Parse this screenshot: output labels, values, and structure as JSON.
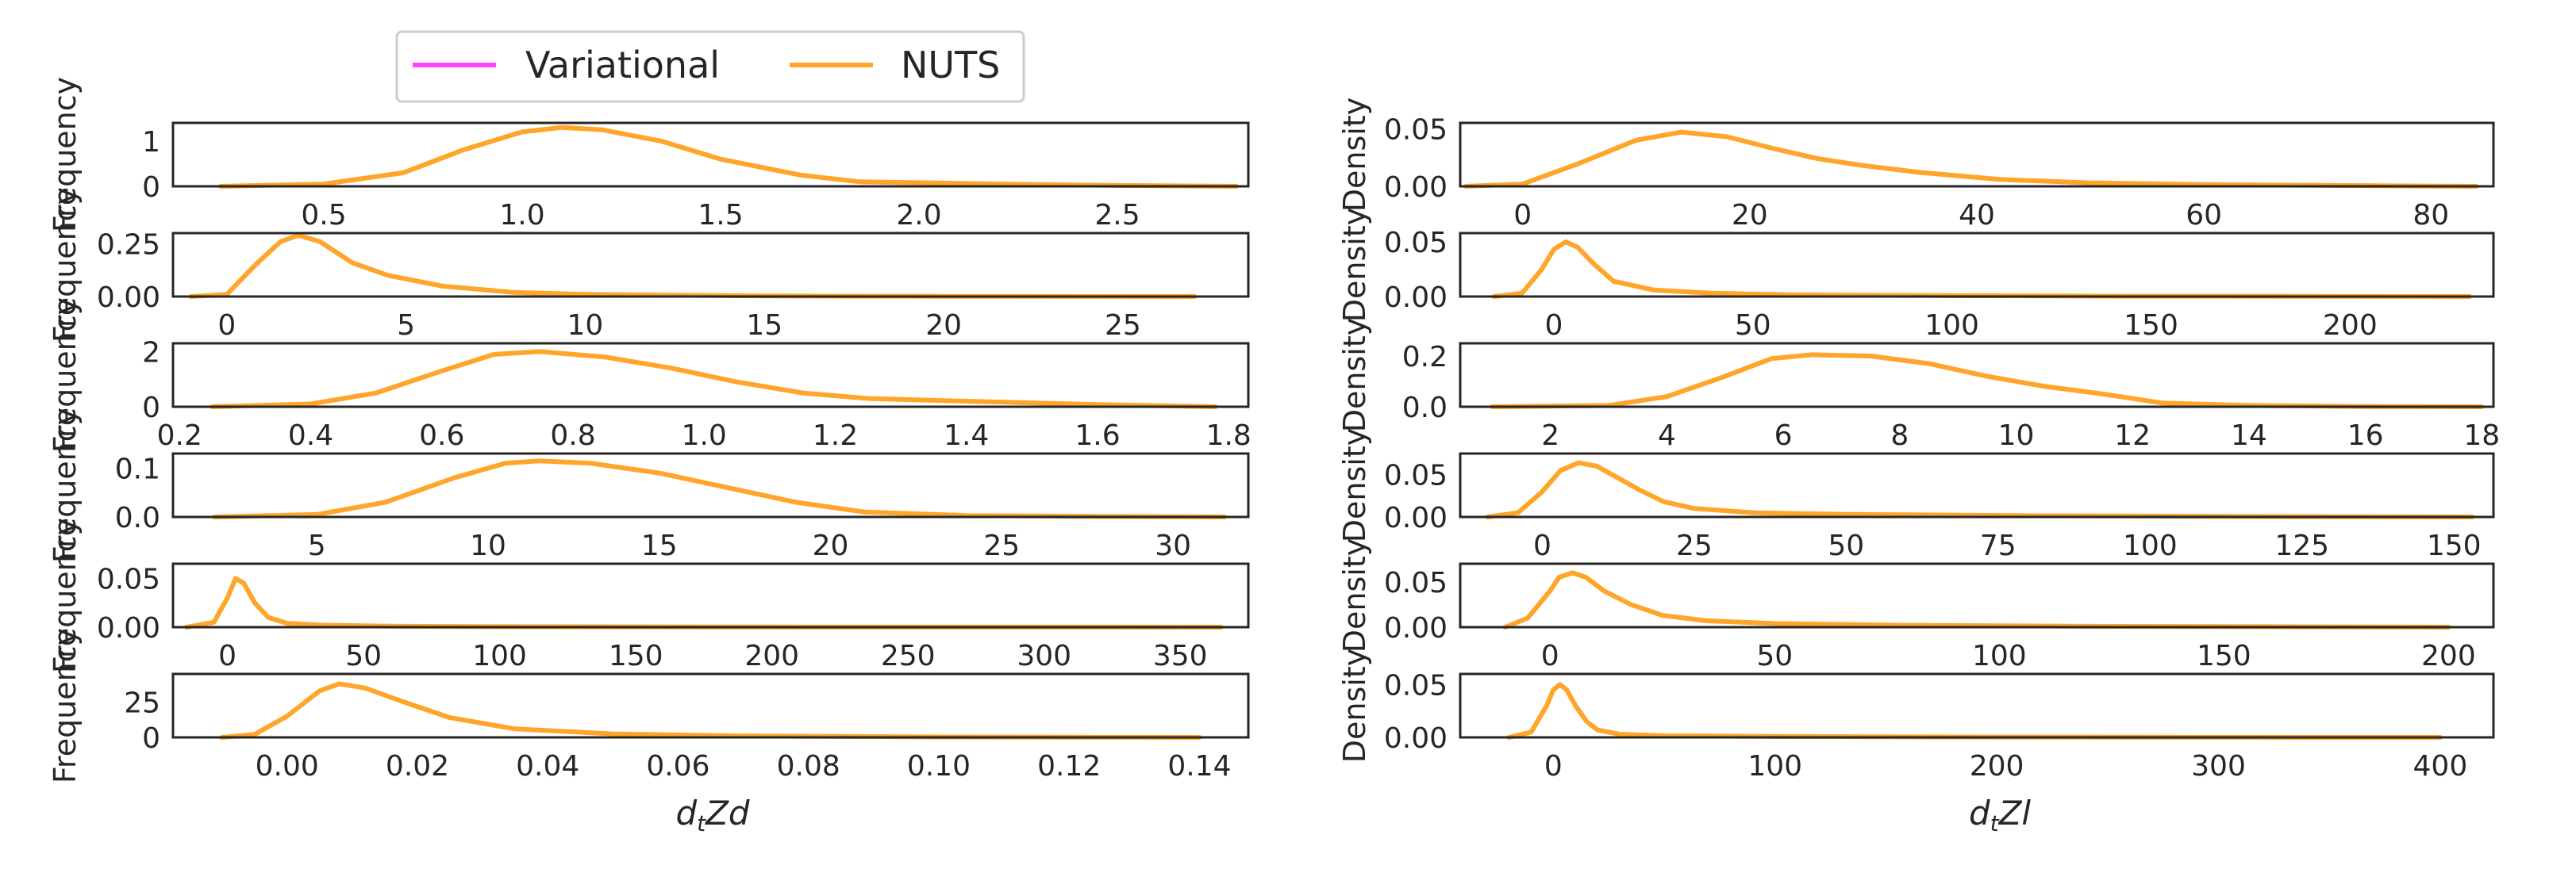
{
  "legend": {
    "placement": "top-left",
    "entries": [
      {
        "label": "Variational",
        "color": "#ff44ff"
      },
      {
        "label": "NUTS",
        "color": "#ffa52a"
      }
    ]
  },
  "columns": [
    {
      "xlabel_main": "d",
      "xlabel_sub": "t",
      "xlabel_tail": "Zd"
    },
    {
      "xlabel_main": "d",
      "xlabel_sub": "t",
      "xlabel_tail": "Zl"
    }
  ],
  "chart_data": [
    {
      "type": "line",
      "col": 0,
      "row": 0,
      "ylabel": "Frequency",
      "xlim": [
        0.12,
        2.83
      ],
      "ylim": [
        0,
        1.4
      ],
      "xticks": [
        0.5,
        1.0,
        1.5,
        2.0,
        2.5
      ],
      "xtick_labels": [
        "0.5",
        "1.0",
        "1.5",
        "2.0",
        "2.5"
      ],
      "yticks": [
        0,
        1
      ],
      "ytick_labels": [
        "0",
        "1"
      ],
      "series": [
        {
          "name": "NUTS",
          "color": "#ffa52a",
          "x": [
            0.24,
            0.5,
            0.7,
            0.85,
            1.0,
            1.1,
            1.2,
            1.35,
            1.5,
            1.7,
            1.85,
            2.0,
            2.2,
            2.5,
            2.8
          ],
          "y": [
            0,
            0.05,
            0.3,
            0.8,
            1.2,
            1.3,
            1.25,
            1.0,
            0.6,
            0.25,
            0.1,
            0.08,
            0.05,
            0.02,
            0
          ]
        }
      ]
    },
    {
      "type": "line",
      "col": 0,
      "row": 1,
      "ylabel": "Frequency",
      "xlim": [
        -1.5,
        28.5
      ],
      "ylim": [
        0,
        0.3
      ],
      "xticks": [
        0,
        5,
        10,
        15,
        20,
        25
      ],
      "xtick_labels": [
        "0",
        "5",
        "10",
        "15",
        "20",
        "25"
      ],
      "yticks": [
        0,
        0.25
      ],
      "ytick_labels": [
        "0.00",
        "0.25"
      ],
      "series": [
        {
          "name": "NUTS",
          "color": "#ffa52a",
          "x": [
            -1,
            0,
            0.8,
            1.5,
            2,
            2.6,
            3.5,
            4.5,
            6,
            8,
            10,
            15,
            20,
            27
          ],
          "y": [
            0,
            0.01,
            0.15,
            0.26,
            0.29,
            0.26,
            0.16,
            0.1,
            0.05,
            0.02,
            0.01,
            0.003,
            0.001,
            0
          ]
        }
      ]
    },
    {
      "type": "line",
      "col": 0,
      "row": 2,
      "ylabel": "Frequency",
      "xlim": [
        0.19,
        1.83
      ],
      "ylim": [
        0,
        2.3
      ],
      "xticks": [
        0.2,
        0.4,
        0.6,
        0.8,
        1.0,
        1.2,
        1.4,
        1.6,
        1.8
      ],
      "xtick_labels": [
        "0.2",
        "0.4",
        "0.6",
        "0.8",
        "1.0",
        "1.2",
        "1.4",
        "1.6",
        "1.8"
      ],
      "yticks": [
        0,
        2
      ],
      "ytick_labels": [
        "0",
        "2"
      ],
      "series": [
        {
          "name": "NUTS",
          "color": "#ffa52a",
          "x": [
            0.25,
            0.4,
            0.5,
            0.6,
            0.68,
            0.75,
            0.85,
            0.95,
            1.05,
            1.15,
            1.25,
            1.4,
            1.6,
            1.78
          ],
          "y": [
            0,
            0.1,
            0.5,
            1.3,
            1.9,
            2.0,
            1.8,
            1.4,
            0.9,
            0.5,
            0.3,
            0.2,
            0.08,
            0
          ]
        }
      ]
    },
    {
      "type": "line",
      "col": 0,
      "row": 3,
      "ylabel": "Frequency",
      "xlim": [
        0.8,
        32.2
      ],
      "ylim": [
        0,
        0.13
      ],
      "xticks": [
        5,
        10,
        15,
        20,
        25,
        30
      ],
      "xtick_labels": [
        "5",
        "10",
        "15",
        "20",
        "25",
        "30"
      ],
      "yticks": [
        0,
        0.1
      ],
      "ytick_labels": [
        "0.0",
        "0.1"
      ],
      "series": [
        {
          "name": "NUTS",
          "color": "#ffa52a",
          "x": [
            2,
            5,
            7,
            9,
            10.5,
            11.5,
            13,
            15,
            17,
            19,
            21,
            24,
            28,
            31.5
          ],
          "y": [
            0,
            0.005,
            0.03,
            0.08,
            0.11,
            0.115,
            0.11,
            0.09,
            0.06,
            0.03,
            0.01,
            0.003,
            0.001,
            0
          ]
        }
      ]
    },
    {
      "type": "line",
      "col": 0,
      "row": 4,
      "ylabel": "Frequency",
      "xlim": [
        -20,
        375
      ],
      "ylim": [
        0,
        0.065
      ],
      "xticks": [
        0,
        50,
        100,
        150,
        200,
        250,
        300,
        350
      ],
      "xtick_labels": [
        "0",
        "50",
        "100",
        "150",
        "200",
        "250",
        "300",
        "350"
      ],
      "yticks": [
        0,
        0.05
      ],
      "ytick_labels": [
        "0.00",
        "0.05"
      ],
      "series": [
        {
          "name": "NUTS",
          "color": "#ffa52a",
          "x": [
            -15,
            -5,
            0,
            3,
            6,
            10,
            15,
            22,
            35,
            60,
            100,
            200,
            300,
            365
          ],
          "y": [
            0,
            0.005,
            0.03,
            0.05,
            0.045,
            0.025,
            0.01,
            0.004,
            0.002,
            0.001,
            0.0005,
            0.0002,
            0.0001,
            0
          ]
        }
      ]
    },
    {
      "type": "line",
      "col": 0,
      "row": 5,
      "ylabel": "Frequency",
      "xlim": [
        -0.0175,
        0.1475
      ],
      "ylim": [
        0,
        45
      ],
      "xticks": [
        0.0,
        0.02,
        0.04,
        0.06,
        0.08,
        0.1,
        0.12,
        0.14
      ],
      "xtick_labels": [
        "0.00",
        "0.02",
        "0.04",
        "0.06",
        "0.08",
        "0.10",
        "0.12",
        "0.14"
      ],
      "yticks": [
        0,
        25
      ],
      "ytick_labels": [
        "0",
        "25"
      ],
      "series": [
        {
          "name": "NUTS",
          "color": "#ffa52a",
          "x": [
            -0.01,
            -0.005,
            0.0,
            0.005,
            0.008,
            0.012,
            0.018,
            0.025,
            0.035,
            0.05,
            0.07,
            0.1,
            0.14
          ],
          "y": [
            0,
            2,
            15,
            33,
            38,
            35,
            25,
            14,
            6,
            2.5,
            1,
            0.3,
            0
          ]
        }
      ]
    },
    {
      "type": "line",
      "col": 1,
      "row": 0,
      "ylabel": "Density",
      "xlim": [
        -5.5,
        85.5
      ],
      "ylim": [
        0,
        0.055
      ],
      "xticks": [
        0,
        20,
        40,
        60,
        80
      ],
      "xtick_labels": [
        "0",
        "20",
        "40",
        "60",
        "80"
      ],
      "yticks": [
        0,
        0.05
      ],
      "ytick_labels": [
        "0.00",
        "0.05"
      ],
      "series": [
        {
          "name": "NUTS",
          "color": "#ffa52a",
          "x": [
            -5,
            0,
            5,
            10,
            14,
            18,
            22,
            26,
            30,
            35,
            42,
            50,
            60,
            70,
            84
          ],
          "y": [
            0,
            0.002,
            0.02,
            0.04,
            0.047,
            0.043,
            0.033,
            0.024,
            0.018,
            0.012,
            0.006,
            0.003,
            0.0015,
            0.0008,
            0
          ]
        }
      ]
    },
    {
      "type": "line",
      "col": 1,
      "row": 1,
      "ylabel": "Density",
      "xlim": [
        -23.5,
        236
      ],
      "ylim": [
        0,
        0.058
      ],
      "xticks": [
        0,
        50,
        100,
        150,
        200
      ],
      "xtick_labels": [
        "0",
        "50",
        "100",
        "150",
        "200"
      ],
      "yticks": [
        0,
        0.05
      ],
      "ytick_labels": [
        "0.00",
        "0.05"
      ],
      "series": [
        {
          "name": "NUTS",
          "color": "#ffa52a",
          "x": [
            -15,
            -8,
            -3,
            0,
            3,
            6,
            10,
            15,
            25,
            40,
            60,
            100,
            150,
            230
          ],
          "y": [
            0,
            0.003,
            0.025,
            0.043,
            0.05,
            0.045,
            0.03,
            0.014,
            0.006,
            0.003,
            0.0015,
            0.0008,
            0.0003,
            0
          ]
        }
      ]
    },
    {
      "type": "line",
      "col": 1,
      "row": 2,
      "ylabel": "Density",
      "xlim": [
        0.45,
        18.2
      ],
      "ylim": [
        0,
        0.25
      ],
      "xticks": [
        2,
        4,
        6,
        8,
        10,
        12,
        14,
        16,
        18
      ],
      "xtick_labels": [
        "2",
        "4",
        "6",
        "8",
        "10",
        "12",
        "14",
        "16",
        "18"
      ],
      "yticks": [
        0,
        0.2
      ],
      "ytick_labels": [
        "0.0",
        "0.2"
      ],
      "series": [
        {
          "name": "NUTS",
          "color": "#ffa52a",
          "x": [
            1,
            3,
            4,
            5,
            5.8,
            6.5,
            7.5,
            8.5,
            9.5,
            10.5,
            11.5,
            12.5,
            14,
            16,
            18
          ],
          "y": [
            0,
            0.005,
            0.04,
            0.12,
            0.19,
            0.205,
            0.2,
            0.17,
            0.12,
            0.08,
            0.05,
            0.015,
            0.005,
            0.001,
            0
          ]
        }
      ]
    },
    {
      "type": "line",
      "col": 1,
      "row": 3,
      "ylabel": "Density",
      "xlim": [
        -13.5,
        156.5
      ],
      "ylim": [
        0,
        0.075
      ],
      "xticks": [
        0,
        25,
        50,
        75,
        100,
        125,
        150
      ],
      "xtick_labels": [
        "0",
        "25",
        "50",
        "75",
        "100",
        "125",
        "150"
      ],
      "yticks": [
        0,
        0.05
      ],
      "ytick_labels": [
        "0.00",
        "0.05"
      ],
      "series": [
        {
          "name": "NUTS",
          "color": "#ffa52a",
          "x": [
            -9,
            -4,
            0,
            3,
            6,
            9,
            12,
            16,
            20,
            25,
            35,
            50,
            80,
            120,
            153
          ],
          "y": [
            0,
            0.005,
            0.03,
            0.055,
            0.064,
            0.06,
            0.048,
            0.032,
            0.018,
            0.01,
            0.005,
            0.003,
            0.0015,
            0.0005,
            0
          ]
        }
      ]
    },
    {
      "type": "line",
      "col": 1,
      "row": 4,
      "ylabel": "Density",
      "xlim": [
        -20,
        210
      ],
      "ylim": [
        0,
        0.07
      ],
      "xticks": [
        0,
        50,
        100,
        150,
        200
      ],
      "xtick_labels": [
        "0",
        "50",
        "100",
        "150",
        "200"
      ],
      "yticks": [
        0,
        0.05
      ],
      "ytick_labels": [
        "0.00",
        "0.05"
      ],
      "series": [
        {
          "name": "NUTS",
          "color": "#ffa52a",
          "x": [
            -10,
            -5,
            0,
            2,
            5,
            8,
            12,
            18,
            25,
            35,
            50,
            80,
            120,
            160,
            200
          ],
          "y": [
            0,
            0.01,
            0.04,
            0.055,
            0.06,
            0.055,
            0.04,
            0.025,
            0.013,
            0.007,
            0.004,
            0.002,
            0.001,
            0.0005,
            0
          ]
        }
      ]
    },
    {
      "type": "line",
      "col": 1,
      "row": 5,
      "ylabel": "Density",
      "xlim": [
        -42,
        424
      ],
      "ylim": [
        0,
        0.06
      ],
      "xticks": [
        0,
        100,
        200,
        300,
        400
      ],
      "xtick_labels": [
        "0",
        "100",
        "200",
        "300",
        "400"
      ],
      "yticks": [
        0,
        0.05
      ],
      "ytick_labels": [
        "0.00",
        "0.05"
      ],
      "series": [
        {
          "name": "NUTS",
          "color": "#ffa52a",
          "x": [
            -20,
            -10,
            -3,
            0,
            3,
            6,
            10,
            15,
            20,
            30,
            50,
            100,
            200,
            300,
            400
          ],
          "y": [
            0,
            0.005,
            0.03,
            0.045,
            0.05,
            0.045,
            0.03,
            0.015,
            0.007,
            0.003,
            0.0015,
            0.0008,
            0.0003,
            0.0001,
            0
          ]
        }
      ]
    }
  ]
}
